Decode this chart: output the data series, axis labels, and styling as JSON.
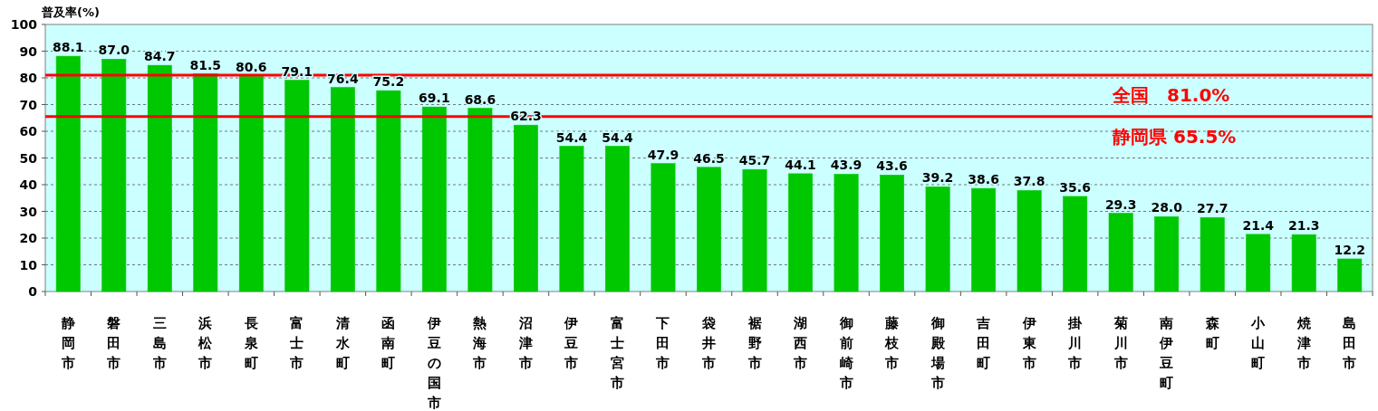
{
  "chart_data": {
    "type": "bar",
    "ylabel": "普及率(%)",
    "categories": [
      "静岡市",
      "磐田市",
      "三島市",
      "浜松市",
      "長泉町",
      "富士市",
      "清水町",
      "函南町",
      "伊豆の国市",
      "熱海市",
      "沼津市",
      "伊豆市",
      "富士宮市",
      "下田市",
      "袋井市",
      "裾野市",
      "湖西市",
      "御前崎市",
      "藤枝市",
      "御殿場市",
      "吉田町",
      "伊東市",
      "掛川市",
      "菊川市",
      "南伊豆町",
      "森町",
      "小山町",
      "焼津市",
      "島田市"
    ],
    "values": [
      88.1,
      87.0,
      84.7,
      81.5,
      80.6,
      79.1,
      76.4,
      75.2,
      69.1,
      68.6,
      62.3,
      54.4,
      54.4,
      47.9,
      46.5,
      45.7,
      44.1,
      43.9,
      43.6,
      39.2,
      38.6,
      37.8,
      35.6,
      29.3,
      28.0,
      27.7,
      21.4,
      21.3,
      12.2
    ],
    "value_labels": [
      "88.1",
      "87.0",
      "84.7",
      "81.5",
      "80.6",
      "79.1",
      "76.4",
      "75.2",
      "69.1",
      "68.6",
      "62.3",
      "54.4",
      "54.4",
      "47.9",
      "46.5",
      "45.7",
      "44.1",
      "43.9",
      "43.6",
      "39.2",
      "38.6",
      "37.8",
      "35.6",
      "29.3",
      "28.0",
      "27.7",
      "21.4",
      "21.3",
      "12.2"
    ],
    "color": "#00c800",
    "ylim": [
      0,
      100
    ],
    "yticks": [
      0,
      10,
      20,
      30,
      40,
      50,
      60,
      70,
      80,
      90,
      100
    ],
    "grid": "y",
    "ref_lines": [
      {
        "axis": "y",
        "value": 81.0,
        "label": "全国　81.0%",
        "color": "#ff0000"
      },
      {
        "axis": "y",
        "value": 65.5,
        "label": "静岡県 65.5%",
        "color": "#ff0000"
      }
    ]
  }
}
